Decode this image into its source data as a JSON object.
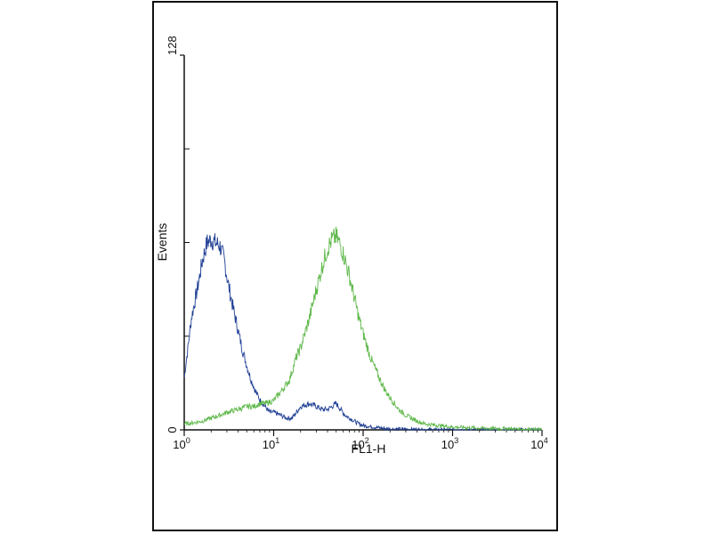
{
  "chart_data": {
    "type": "line",
    "title": "",
    "xlabel": "FL1-H",
    "ylabel": "Events",
    "x_scale": "log",
    "xlim": [
      1,
      10000
    ],
    "ylim": [
      0,
      128
    ],
    "x_ticks": [
      {
        "value": 1,
        "base": "10",
        "exp": "0"
      },
      {
        "value": 10,
        "base": "10",
        "exp": "1"
      },
      {
        "value": 100,
        "base": "10",
        "exp": "2"
      },
      {
        "value": 1000,
        "base": "10",
        "exp": "3"
      },
      {
        "value": 10000,
        "base": "10",
        "exp": "4"
      }
    ],
    "y_ticks": [
      {
        "value": 0,
        "label": "0"
      },
      {
        "value": 128,
        "label": "128"
      }
    ],
    "grid": false,
    "legend": "none",
    "series": [
      {
        "color": "#1f3f94",
        "x": [
          1,
          1.1,
          1.2,
          1.4,
          1.6,
          1.8,
          2.0,
          2.2,
          2.5,
          2.8,
          3.1,
          3.5,
          4.0,
          4.5,
          5.0,
          5.6,
          6.3,
          7.1,
          8.0,
          9.0,
          10,
          12,
          14,
          16,
          18,
          20,
          25,
          30,
          35,
          40,
          45,
          50,
          56,
          63,
          71,
          80,
          90,
          100,
          130,
          160,
          200,
          300,
          500,
          1000,
          10000
        ],
        "y": [
          18,
          28,
          38,
          48,
          58,
          64,
          65,
          64,
          63,
          58,
          50,
          42,
          34,
          27,
          22,
          17,
          13,
          10,
          8,
          6,
          6,
          5,
          4,
          4,
          6,
          8,
          9,
          8,
          7,
          7,
          8,
          9,
          7,
          5,
          4,
          3,
          2,
          1.5,
          1,
          0.6,
          0.3,
          0.2,
          0.1,
          0,
          0
        ]
      },
      {
        "color": "#5fb84a",
        "x": [
          1,
          1.3,
          1.6,
          2,
          2.5,
          3,
          4,
          5,
          6,
          7,
          8,
          10,
          12,
          15,
          18,
          20,
          25,
          30,
          35,
          40,
          45,
          50,
          56,
          63,
          71,
          80,
          90,
          100,
          120,
          150,
          180,
          200,
          250,
          300,
          400,
          500,
          700,
          1000,
          2000,
          5000,
          10000
        ],
        "y": [
          2,
          2.5,
          3,
          4,
          5,
          6,
          7,
          8,
          8,
          9,
          9,
          10,
          13,
          17,
          25,
          28,
          38,
          48,
          56,
          62,
          65,
          66,
          63,
          58,
          52,
          45,
          38,
          33,
          25,
          18,
          13,
          11,
          7,
          5,
          3,
          2,
          1.5,
          1,
          0.6,
          0.3,
          0
        ]
      }
    ]
  }
}
